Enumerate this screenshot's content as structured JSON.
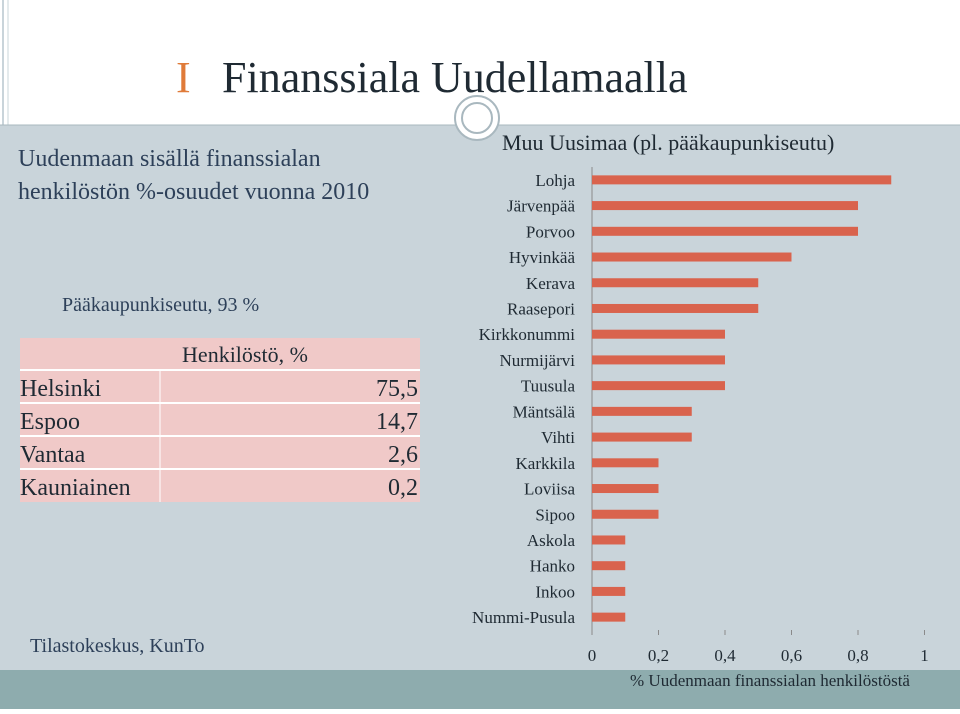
{
  "slide": {
    "title_number": "I",
    "title": "Finanssiala Uudellamaalla",
    "intro": [
      "Uudenmaan sisällä finanssialan",
      "henkilöstön %-osuudet vuonna 2010"
    ],
    "capital_share": "Pääkaupunkiseutu, 93 %",
    "source": "Tilastokeskus, KunTo"
  },
  "table": {
    "header": "Henkilöstö, %",
    "rows": [
      [
        "Helsinki",
        "75,5"
      ],
      [
        "Espoo",
        "14,7"
      ],
      [
        "Vantaa",
        "2,6"
      ],
      [
        "Kauniainen",
        "0,2"
      ]
    ]
  },
  "chart_data": {
    "type": "barh",
    "title": "Muu Uusimaa (pl. pääkaupunkiseutu)",
    "xlabel": "% Uudenmaan finanssialan henkilöstöstä",
    "categories": [
      "Lohja",
      "Järvenpää",
      "Porvoo",
      "Hyvinkää",
      "Kerava",
      "Raasepori",
      "Kirkkonummi",
      "Nurmijärvi",
      "Tuusula",
      "Mäntsälä",
      "Vihti",
      "Karkkila",
      "Loviisa",
      "Sipoo",
      "Askola",
      "Hanko",
      "Inkoo",
      "Nummi-Pusula"
    ],
    "values": [
      0.9,
      0.8,
      0.8,
      0.6,
      0.5,
      0.5,
      0.4,
      0.4,
      0.4,
      0.3,
      0.3,
      0.2,
      0.2,
      0.2,
      0.1,
      0.1,
      0.1,
      0.1
    ],
    "color": "#d9634d",
    "xlim": [
      0,
      1
    ],
    "xticks": [
      0,
      {
        "value": 0.2,
        "label": "0,2"
      },
      {
        "value": 0.4,
        "label": "0,4"
      },
      {
        "value": 0.6,
        "label": "0,6"
      },
      {
        "value": 0.8,
        "label": "0,8"
      },
      1
    ]
  }
}
